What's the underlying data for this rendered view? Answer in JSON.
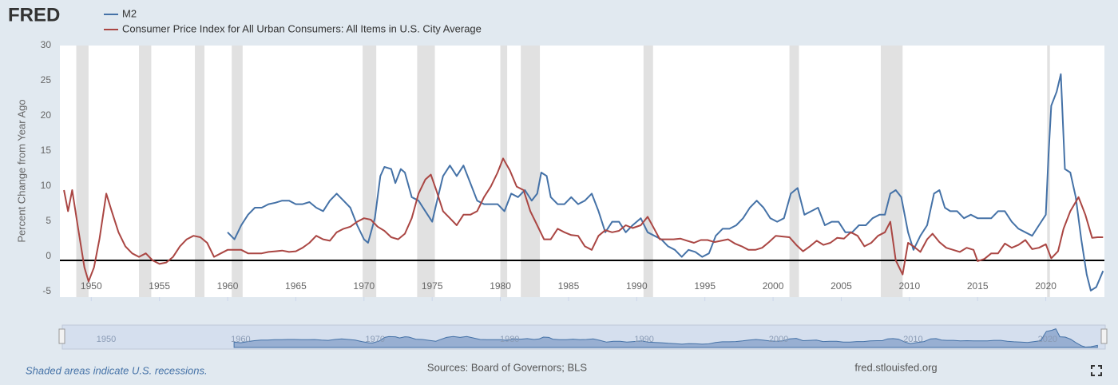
{
  "logo": "FRED",
  "footer": {
    "note": "Shaded areas indicate U.S. recessions.",
    "sources": "Sources: Board of Governors; BLS",
    "site": "fred.stlouisfed.org"
  },
  "chart_data": {
    "type": "line",
    "y_label": "Percent Change from Year Ago",
    "xlim": [
      1947.7,
      2024.3
    ],
    "xticks": [
      1950,
      1955,
      1960,
      1965,
      1970,
      1975,
      1980,
      1985,
      1990,
      1995,
      2000,
      2005,
      2010,
      2015,
      2020
    ],
    "ylim": [
      -5,
      30
    ],
    "yticks": [
      -5,
      0,
      5,
      10,
      15,
      20,
      25,
      30
    ],
    "grid": false,
    "recessions": [
      [
        1948.9,
        1949.8
      ],
      [
        1953.5,
        1954.4
      ],
      [
        1957.6,
        1958.3
      ],
      [
        1960.3,
        1961.1
      ],
      [
        1969.9,
        1970.9
      ],
      [
        1973.9,
        1975.2
      ],
      [
        1980.0,
        1980.5
      ],
      [
        1981.5,
        1982.9
      ],
      [
        1990.5,
        1991.2
      ],
      [
        2001.2,
        2001.9
      ],
      [
        2007.9,
        2009.5
      ],
      [
        2020.1,
        2020.3
      ]
    ],
    "navigator_ticks": [
      1950,
      1960,
      1970,
      1980,
      1990,
      2000,
      2010,
      2020
    ],
    "series": [
      {
        "name": "M2",
        "color": "#4572a7",
        "x": [
          1960.0,
          1960.5,
          1961.0,
          1961.5,
          1962.0,
          1962.5,
          1963.0,
          1963.5,
          1964.0,
          1964.5,
          1965.0,
          1965.5,
          1966.0,
          1966.5,
          1967.0,
          1967.5,
          1968.0,
          1968.5,
          1969.0,
          1969.5,
          1970.0,
          1970.3,
          1970.8,
          1971.2,
          1971.5,
          1972.0,
          1972.3,
          1972.7,
          1973.0,
          1973.5,
          1974.0,
          1974.5,
          1975.0,
          1975.3,
          1975.8,
          1976.3,
          1976.8,
          1977.3,
          1977.8,
          1978.3,
          1978.8,
          1979.3,
          1979.8,
          1980.3,
          1980.8,
          1981.3,
          1981.8,
          1982.3,
          1982.7,
          1983.0,
          1983.4,
          1983.7,
          1984.2,
          1984.7,
          1985.2,
          1985.7,
          1986.2,
          1986.7,
          1987.2,
          1987.7,
          1988.2,
          1988.7,
          1989.2,
          1989.7,
          1990.3,
          1990.8,
          1991.3,
          1991.8,
          1992.3,
          1992.8,
          1993.3,
          1993.8,
          1994.3,
          1994.8,
          1995.3,
          1995.8,
          1996.3,
          1996.8,
          1997.3,
          1997.8,
          1998.3,
          1998.8,
          1999.3,
          1999.8,
          2000.3,
          2000.8,
          2001.3,
          2001.8,
          2002.3,
          2002.8,
          2003.3,
          2003.8,
          2004.3,
          2004.8,
          2005.3,
          2005.8,
          2006.3,
          2006.8,
          2007.3,
          2007.8,
          2008.2,
          2008.6,
          2009.0,
          2009.4,
          2009.9,
          2010.3,
          2010.8,
          2011.3,
          2011.8,
          2012.2,
          2012.6,
          2013.0,
          2013.5,
          2014.0,
          2014.5,
          2015.0,
          2015.5,
          2016.0,
          2016.5,
          2017.0,
          2017.5,
          2018.0,
          2018.5,
          2019.0,
          2019.5,
          2020.0,
          2020.2,
          2020.4,
          2020.8,
          2021.1,
          2021.4,
          2021.8,
          2022.2,
          2022.6,
          2023.0,
          2023.3,
          2023.7,
          2024.2
        ],
        "values": [
          4,
          3,
          5,
          6.5,
          7.5,
          7.5,
          8,
          8.2,
          8.5,
          8.5,
          8,
          8,
          8.3,
          7.5,
          7,
          8.5,
          9.5,
          8.5,
          7.5,
          5,
          3,
          2.5,
          6,
          12,
          13.3,
          13,
          11,
          13,
          12.5,
          9,
          8.5,
          7,
          5.5,
          8,
          12,
          13.5,
          12,
          13.5,
          11,
          8.5,
          8,
          8,
          8,
          7,
          9.5,
          9,
          10,
          8.5,
          9.5,
          12.5,
          12,
          9,
          8,
          8,
          9,
          8,
          8.5,
          9.5,
          7,
          4,
          5.5,
          5.5,
          4,
          5,
          6,
          4,
          3.5,
          3,
          2,
          1.5,
          0.5,
          1.5,
          1.2,
          0.5,
          1,
          3.5,
          4.5,
          4.5,
          5,
          6,
          7.5,
          8.5,
          7.5,
          6,
          5.5,
          6,
          9.5,
          10.3,
          6.5,
          7,
          7.5,
          5,
          5.5,
          5.5,
          4,
          4,
          5,
          5,
          6,
          6.5,
          6.5,
          9.5,
          10,
          9,
          4,
          1.5,
          3.5,
          5,
          9.5,
          10,
          7.5,
          7,
          7,
          6,
          6.5,
          6,
          6,
          6,
          7,
          7,
          5.5,
          4.5,
          4,
          3.5,
          5,
          6.5,
          15,
          22,
          24,
          26.5,
          13,
          12.5,
          9,
          3,
          -2,
          -4.3,
          -3.8,
          -1.5
        ]
      },
      {
        "name": "Consumer Price Index for All Urban Consumers: All Items in U.S. City Average",
        "color": "#aa4643",
        "x": [
          1948.0,
          1948.3,
          1948.6,
          1949.0,
          1949.5,
          1949.8,
          1950.2,
          1950.6,
          1951.1,
          1951.5,
          1952.0,
          1952.5,
          1953.0,
          1953.5,
          1954.0,
          1954.5,
          1955.0,
          1955.5,
          1956.0,
          1956.5,
          1957.0,
          1957.5,
          1958.0,
          1958.5,
          1959.0,
          1959.5,
          1960.0,
          1960.5,
          1961.0,
          1961.5,
          1962.0,
          1962.5,
          1963.0,
          1963.5,
          1964.0,
          1964.5,
          1965.0,
          1965.5,
          1966.0,
          1966.5,
          1967.0,
          1967.5,
          1968.0,
          1968.5,
          1969.0,
          1969.5,
          1970.0,
          1970.5,
          1971.0,
          1971.5,
          1972.0,
          1972.5,
          1973.0,
          1973.5,
          1974.0,
          1974.5,
          1974.9,
          1975.3,
          1975.8,
          1976.3,
          1976.8,
          1977.3,
          1977.8,
          1978.3,
          1978.8,
          1979.3,
          1979.8,
          1980.2,
          1980.7,
          1981.2,
          1981.7,
          1982.2,
          1982.7,
          1983.2,
          1983.7,
          1984.2,
          1984.7,
          1985.2,
          1985.7,
          1986.2,
          1986.7,
          1987.2,
          1987.7,
          1988.2,
          1988.7,
          1989.2,
          1989.7,
          1990.3,
          1990.8,
          1991.2,
          1991.7,
          1992.2,
          1992.7,
          1993.2,
          1993.7,
          1994.2,
          1994.7,
          1995.2,
          1995.7,
          1996.2,
          1996.7,
          1997.2,
          1997.7,
          1998.2,
          1998.7,
          1999.2,
          1999.7,
          2000.2,
          2000.7,
          2001.2,
          2001.7,
          2002.2,
          2002.7,
          2003.2,
          2003.7,
          2004.2,
          2004.7,
          2005.2,
          2005.7,
          2006.2,
          2006.7,
          2007.2,
          2007.7,
          2008.2,
          2008.6,
          2009.0,
          2009.5,
          2009.9,
          2010.3,
          2010.8,
          2011.3,
          2011.7,
          2012.2,
          2012.7,
          2013.2,
          2013.7,
          2014.2,
          2014.7,
          2015.0,
          2015.5,
          2016.0,
          2016.5,
          2017.0,
          2017.5,
          2018.0,
          2018.5,
          2019.0,
          2019.5,
          2020.0,
          2020.4,
          2020.9,
          2021.3,
          2021.8,
          2022.4,
          2022.9,
          2023.4,
          2023.8,
          2024.2
        ],
        "values": [
          10,
          7,
          10,
          5,
          -1,
          -3,
          -1,
          3,
          9.5,
          7,
          4,
          2,
          1,
          0.5,
          1,
          0,
          -0.5,
          -0.3,
          0.5,
          2,
          3,
          3.5,
          3.3,
          2.5,
          0.5,
          1,
          1.5,
          1.5,
          1.5,
          1,
          1,
          1,
          1.2,
          1.3,
          1.4,
          1.2,
          1.3,
          1.8,
          2.5,
          3.5,
          3,
          2.8,
          4,
          4.5,
          4.8,
          5.5,
          6,
          5.8,
          4.8,
          4.2,
          3.3,
          3,
          3.8,
          6,
          9.5,
          11.5,
          12.2,
          10,
          7,
          6,
          5,
          6.5,
          6.5,
          7,
          9,
          10.5,
          12.5,
          14.5,
          12.8,
          10.5,
          10,
          7,
          5,
          3,
          3,
          4.5,
          4,
          3.6,
          3.5,
          2,
          1.5,
          3.5,
          4.3,
          4,
          4.2,
          5,
          4.6,
          5,
          6.2,
          4.8,
          3,
          3,
          3,
          3.1,
          2.8,
          2.5,
          2.9,
          2.9,
          2.6,
          2.8,
          3,
          2.4,
          2,
          1.5,
          1.5,
          1.8,
          2.6,
          3.5,
          3.4,
          3.3,
          2.2,
          1.3,
          2,
          2.8,
          2.2,
          2.5,
          3.2,
          3.1,
          4,
          3.5,
          2,
          2.5,
          3.5,
          4,
          5.5,
          0,
          -2,
          2.5,
          2,
          1.2,
          3,
          3.8,
          2.6,
          1.8,
          1.5,
          1.2,
          1.8,
          1.5,
          -0.1,
          0.2,
          1,
          1,
          2.4,
          1.8,
          2.2,
          2.9,
          1.6,
          1.8,
          2.3,
          0.3,
          1.3,
          4.5,
          7,
          9,
          6.5,
          3.2,
          3.3,
          3.3
        ]
      }
    ]
  }
}
